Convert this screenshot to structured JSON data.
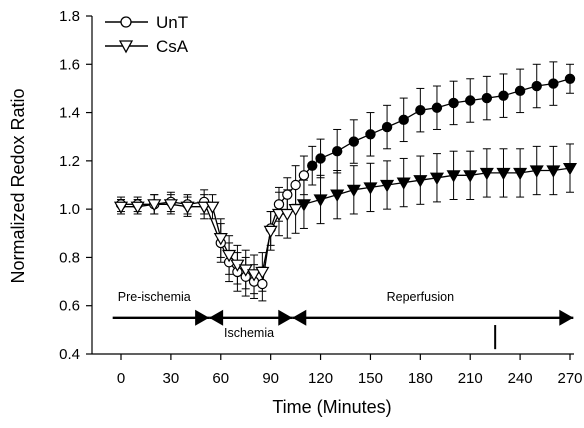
{
  "chart_data": {
    "type": "scatter",
    "title": "",
    "xlabel": "Time (Minutes)",
    "ylabel": "Normalized Redox Ratio",
    "xlim": [
      -15,
      272
    ],
    "ylim": [
      0.4,
      1.8
    ],
    "x_ticks": [
      0,
      30,
      60,
      90,
      120,
      150,
      180,
      210,
      240,
      270
    ],
    "y_ticks": [
      0.4,
      0.6,
      0.8,
      1.0,
      1.2,
      1.4,
      1.6,
      1.8
    ],
    "x_tick_labels": [
      "0",
      "30",
      "60",
      "90",
      "120",
      "150",
      "180",
      "210",
      "240",
      "270"
    ],
    "y_tick_labels": [
      "0.4",
      "0.6",
      "0.8",
      "1.0",
      "1.2",
      "1.4",
      "1.6",
      "1.8"
    ],
    "legend_position": "top-left",
    "series": [
      {
        "name": "UnT",
        "marker": "circle",
        "points": [
          {
            "x": 0,
            "y": 1.02,
            "err": 0.03,
            "fill": "open"
          },
          {
            "x": 10,
            "y": 1.02,
            "err": 0.03,
            "fill": "open"
          },
          {
            "x": 20,
            "y": 1.02,
            "err": 0.04,
            "fill": "open"
          },
          {
            "x": 30,
            "y": 1.03,
            "err": 0.04,
            "fill": "open"
          },
          {
            "x": 40,
            "y": 1.02,
            "err": 0.04,
            "fill": "open"
          },
          {
            "x": 50,
            "y": 1.03,
            "err": 0.05,
            "fill": "open"
          },
          {
            "x": 60,
            "y": 0.86,
            "err": 0.08,
            "fill": "open"
          },
          {
            "x": 65,
            "y": 0.78,
            "err": 0.08,
            "fill": "open"
          },
          {
            "x": 70,
            "y": 0.74,
            "err": 0.08,
            "fill": "open"
          },
          {
            "x": 75,
            "y": 0.72,
            "err": 0.08,
            "fill": "open"
          },
          {
            "x": 80,
            "y": 0.7,
            "err": 0.07,
            "fill": "open"
          },
          {
            "x": 85,
            "y": 0.69,
            "err": 0.07,
            "fill": "open"
          },
          {
            "x": 90,
            "y": 0.92,
            "err": 0.07,
            "fill": "open"
          },
          {
            "x": 95,
            "y": 1.02,
            "err": 0.07,
            "fill": "open"
          },
          {
            "x": 100,
            "y": 1.06,
            "err": 0.07,
            "fill": "open"
          },
          {
            "x": 105,
            "y": 1.1,
            "err": 0.08,
            "fill": "open"
          },
          {
            "x": 110,
            "y": 1.14,
            "err": 0.08,
            "fill": "open"
          },
          {
            "x": 115,
            "y": 1.18,
            "err": 0.08,
            "fill": "filled"
          },
          {
            "x": 120,
            "y": 1.21,
            "err": 0.08,
            "fill": "filled"
          },
          {
            "x": 130,
            "y": 1.24,
            "err": 0.09,
            "fill": "filled"
          },
          {
            "x": 140,
            "y": 1.28,
            "err": 0.09,
            "fill": "filled"
          },
          {
            "x": 150,
            "y": 1.31,
            "err": 0.09,
            "fill": "filled"
          },
          {
            "x": 160,
            "y": 1.34,
            "err": 0.09,
            "fill": "filled"
          },
          {
            "x": 170,
            "y": 1.37,
            "err": 0.09,
            "fill": "filled"
          },
          {
            "x": 180,
            "y": 1.41,
            "err": 0.09,
            "fill": "filled"
          },
          {
            "x": 190,
            "y": 1.42,
            "err": 0.09,
            "fill": "filled"
          },
          {
            "x": 200,
            "y": 1.44,
            "err": 0.09,
            "fill": "filled"
          },
          {
            "x": 210,
            "y": 1.45,
            "err": 0.09,
            "fill": "filled"
          },
          {
            "x": 220,
            "y": 1.46,
            "err": 0.09,
            "fill": "filled"
          },
          {
            "x": 230,
            "y": 1.47,
            "err": 0.09,
            "fill": "filled"
          },
          {
            "x": 240,
            "y": 1.49,
            "err": 0.09,
            "fill": "filled"
          },
          {
            "x": 250,
            "y": 1.51,
            "err": 0.09,
            "fill": "filled"
          },
          {
            "x": 260,
            "y": 1.52,
            "err": 0.09,
            "fill": "filled"
          },
          {
            "x": 270,
            "y": 1.54,
            "err": 0.06,
            "fill": "filled"
          }
        ]
      },
      {
        "name": "CsA",
        "marker": "triangle-down",
        "points": [
          {
            "x": 0,
            "y": 1.01,
            "err": 0.03,
            "fill": "open"
          },
          {
            "x": 10,
            "y": 1.01,
            "err": 0.03,
            "fill": "open"
          },
          {
            "x": 20,
            "y": 1.02,
            "err": 0.04,
            "fill": "open"
          },
          {
            "x": 30,
            "y": 1.02,
            "err": 0.04,
            "fill": "open"
          },
          {
            "x": 40,
            "y": 1.01,
            "err": 0.04,
            "fill": "open"
          },
          {
            "x": 50,
            "y": 1.01,
            "err": 0.05,
            "fill": "open"
          },
          {
            "x": 55,
            "y": 1.01,
            "err": 0.05,
            "fill": "open"
          },
          {
            "x": 60,
            "y": 0.88,
            "err": 0.08,
            "fill": "open"
          },
          {
            "x": 65,
            "y": 0.81,
            "err": 0.08,
            "fill": "open"
          },
          {
            "x": 70,
            "y": 0.77,
            "err": 0.08,
            "fill": "open"
          },
          {
            "x": 75,
            "y": 0.75,
            "err": 0.08,
            "fill": "open"
          },
          {
            "x": 80,
            "y": 0.73,
            "err": 0.08,
            "fill": "open"
          },
          {
            "x": 85,
            "y": 0.74,
            "err": 0.08,
            "fill": "open"
          },
          {
            "x": 90,
            "y": 0.91,
            "err": 0.08,
            "fill": "open"
          },
          {
            "x": 95,
            "y": 0.98,
            "err": 0.09,
            "fill": "open"
          },
          {
            "x": 100,
            "y": 0.98,
            "err": 0.1,
            "fill": "open"
          },
          {
            "x": 105,
            "y": 1.0,
            "err": 0.1,
            "fill": "open"
          },
          {
            "x": 110,
            "y": 1.02,
            "err": 0.1,
            "fill": "filled"
          },
          {
            "x": 120,
            "y": 1.04,
            "err": 0.1,
            "fill": "filled"
          },
          {
            "x": 130,
            "y": 1.06,
            "err": 0.1,
            "fill": "filled"
          },
          {
            "x": 140,
            "y": 1.08,
            "err": 0.1,
            "fill": "filled"
          },
          {
            "x": 150,
            "y": 1.09,
            "err": 0.1,
            "fill": "filled"
          },
          {
            "x": 160,
            "y": 1.1,
            "err": 0.1,
            "fill": "filled"
          },
          {
            "x": 170,
            "y": 1.11,
            "err": 0.1,
            "fill": "filled"
          },
          {
            "x": 180,
            "y": 1.12,
            "err": 0.1,
            "fill": "filled"
          },
          {
            "x": 190,
            "y": 1.13,
            "err": 0.1,
            "fill": "filled"
          },
          {
            "x": 200,
            "y": 1.14,
            "err": 0.1,
            "fill": "filled"
          },
          {
            "x": 210,
            "y": 1.14,
            "err": 0.1,
            "fill": "filled"
          },
          {
            "x": 220,
            "y": 1.15,
            "err": 0.1,
            "fill": "filled"
          },
          {
            "x": 230,
            "y": 1.15,
            "err": 0.1,
            "fill": "filled"
          },
          {
            "x": 240,
            "y": 1.15,
            "err": 0.1,
            "fill": "filled"
          },
          {
            "x": 250,
            "y": 1.16,
            "err": 0.1,
            "fill": "filled"
          },
          {
            "x": 260,
            "y": 1.16,
            "err": 0.1,
            "fill": "filled"
          },
          {
            "x": 270,
            "y": 1.17,
            "err": 0.1,
            "fill": "filled"
          }
        ]
      }
    ],
    "phases": [
      {
        "label": "Pre-ischemia",
        "x_start": -5,
        "x_end": 53,
        "label_x": 20,
        "label_y": 0.62
      },
      {
        "label": "Ischemia",
        "x_start": 53,
        "x_end": 103,
        "label_x": 77,
        "label_y": 0.47
      },
      {
        "label": "Reperfusion",
        "x_start": 103,
        "x_end": 272,
        "label_x": 180,
        "label_y": 0.62
      }
    ],
    "marker_line_x": 225,
    "colors": {
      "ink": "#000000",
      "background": "#ffffff"
    }
  }
}
